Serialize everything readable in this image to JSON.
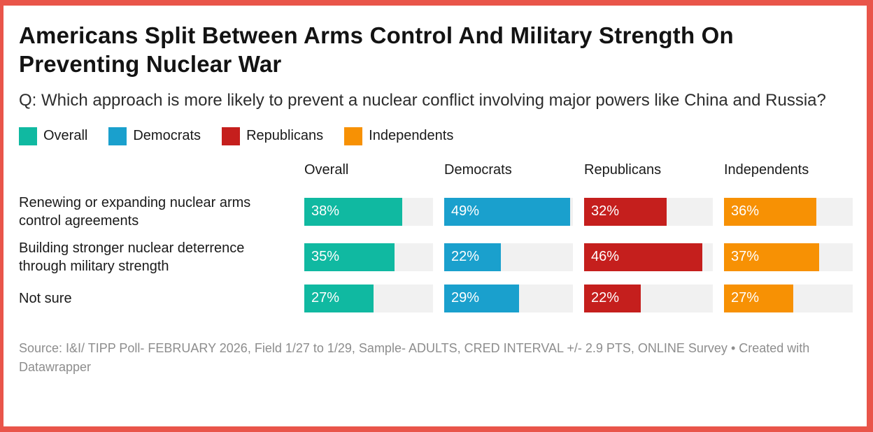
{
  "frame": {
    "border_color": "#e9554a",
    "background": "#ffffff"
  },
  "header": {
    "title": "Americans Split Between Arms Control And Military Strength On Preventing Nuclear War",
    "question": "Q: Which approach is more likely to prevent a nuclear conflict involving major powers like China and Russia?"
  },
  "legend": {
    "items": [
      {
        "label": "Overall",
        "color": "#10b9a1"
      },
      {
        "label": "Democrats",
        "color": "#1aa0cd"
      },
      {
        "label": "Republicans",
        "color": "#c51f1d"
      },
      {
        "label": "Independents",
        "color": "#f79104"
      }
    ]
  },
  "chart_data": {
    "type": "bar",
    "title": "Americans Split Between Arms Control And Military Strength On Preventing Nuclear War",
    "subtitle": "Q: Which approach is more likely to prevent a nuclear conflict involving major powers like China and Russia?",
    "orientation": "horizontal",
    "value_suffix": "%",
    "axis_max": 50,
    "value_labels": true,
    "track_color": "#f1f1f1",
    "categories": [
      "Renewing or expanding nuclear arms control agreements",
      "Building stronger nuclear deterrence through military strength",
      "Not sure"
    ],
    "series": [
      {
        "name": "Overall",
        "color": "#10b9a1",
        "values": [
          38,
          35,
          27
        ]
      },
      {
        "name": "Democrats",
        "color": "#1aa0cd",
        "values": [
          49,
          22,
          29
        ]
      },
      {
        "name": "Republicans",
        "color": "#c51f1d",
        "values": [
          32,
          46,
          22
        ]
      },
      {
        "name": "Independents",
        "color": "#f79104",
        "values": [
          36,
          37,
          27
        ]
      }
    ]
  },
  "footer": {
    "source": "Source: I&I/ TIPP Poll- FEBRUARY 2026, Field 1/27 to 1/29, Sample- ADULTS, CRED INTERVAL +/- 2.9 PTS, ONLINE Survey",
    "separator": "•",
    "attribution": "Created with Datawrapper"
  }
}
